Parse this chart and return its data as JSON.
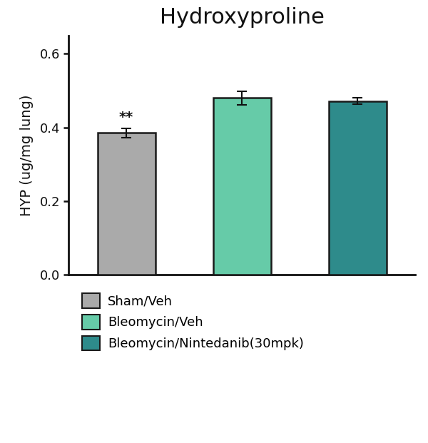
{
  "title": "Hydroxyproline",
  "ylabel": "HYP (ug/mg lung)",
  "categories": [
    "Sham/Veh",
    "Bleomycin/Veh",
    "Bleomycin/Nintedanib(30mpk)"
  ],
  "values": [
    0.385,
    0.48,
    0.472
  ],
  "errors": [
    0.012,
    0.018,
    0.008
  ],
  "bar_colors": [
    "#AAAAAA",
    "#66CBA8",
    "#2E8B8B"
  ],
  "bar_edgecolors": [
    "#1a1a1a",
    "#1a1a1a",
    "#1a1a1a"
  ],
  "ylim": [
    0.0,
    0.65
  ],
  "yticks": [
    0.0,
    0.2,
    0.4,
    0.6
  ],
  "significance": [
    "**",
    "",
    ""
  ],
  "sig_fontsize": 14,
  "title_fontsize": 22,
  "ylabel_fontsize": 14,
  "tick_fontsize": 13,
  "legend_fontsize": 13,
  "bar_width": 0.5,
  "background_color": "#ffffff",
  "figsize": [
    6.0,
    6.21
  ],
  "dpi": 100,
  "x_positions": [
    0.5,
    1.5,
    2.5
  ],
  "xlim": [
    0.0,
    3.0
  ]
}
